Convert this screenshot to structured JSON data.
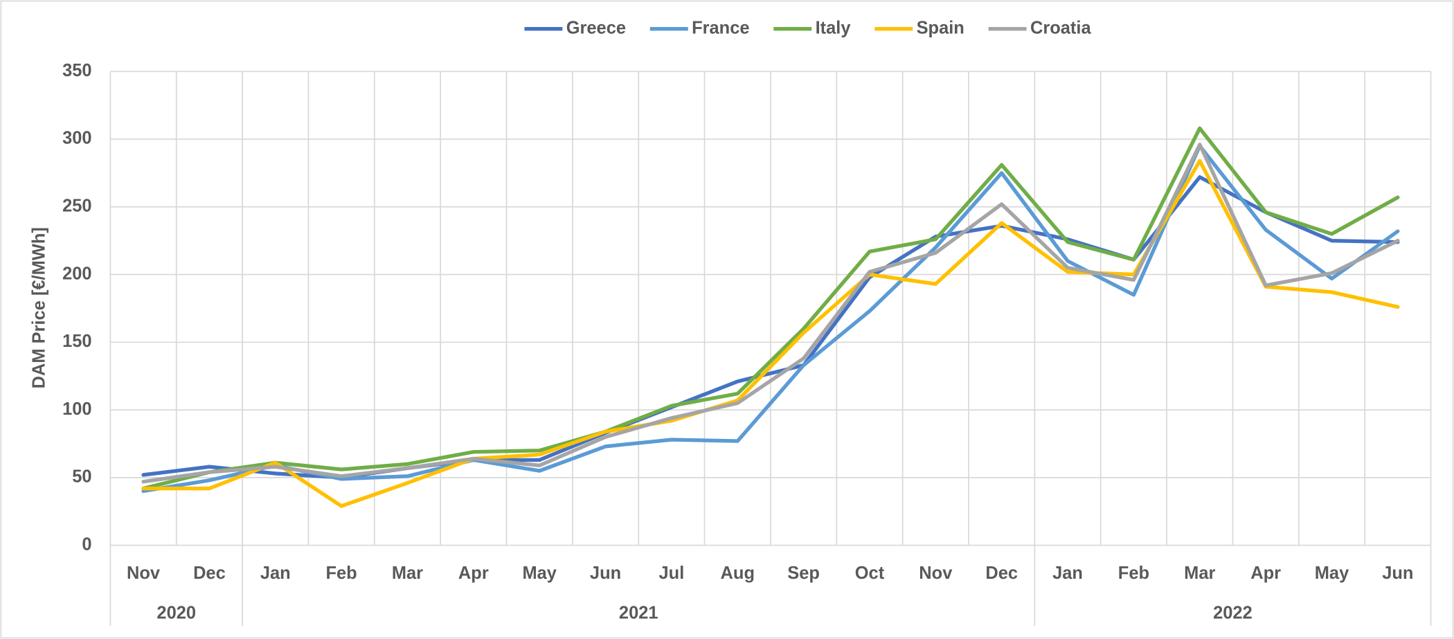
{
  "chart_data": {
    "type": "line",
    "y_label": "DAM Price [€/MWh]",
    "categories": [
      "Nov",
      "Dec",
      "Jan",
      "Feb",
      "Mar",
      "Apr",
      "May",
      "Jun",
      "Jul",
      "Aug",
      "Sep",
      "Oct",
      "Nov",
      "Dec",
      "Jan",
      "Feb",
      "Mar",
      "Apr",
      "May",
      "Jun"
    ],
    "year_groups": [
      {
        "label": "2020",
        "span": 2
      },
      {
        "label": "2021",
        "span": 12
      },
      {
        "label": "2022",
        "span": 6
      }
    ],
    "series": [
      {
        "name": "Greece",
        "color": "#4472c4",
        "values": [
          52,
          58,
          53,
          50,
          57,
          63,
          63,
          83,
          102,
          121,
          133,
          198,
          228,
          236,
          226,
          211,
          272,
          246,
          225,
          224
        ]
      },
      {
        "name": "France",
        "color": "#5b9bd5",
        "values": [
          40,
          48,
          59,
          49,
          51,
          63,
          55,
          73,
          78,
          77,
          133,
          173,
          220,
          275,
          210,
          185,
          295,
          233,
          197,
          232
        ]
      },
      {
        "name": "Italy",
        "color": "#70ad47",
        "values": [
          42,
          54,
          61,
          56,
          60,
          69,
          70,
          84,
          103,
          112,
          160,
          217,
          226,
          281,
          224,
          211,
          308,
          246,
          230,
          257
        ]
      },
      {
        "name": "Spain",
        "color": "#ffc000",
        "values": [
          42,
          42,
          61,
          29,
          46,
          64,
          67,
          84,
          92,
          107,
          157,
          200,
          193,
          238,
          202,
          200,
          284,
          191,
          187,
          176
        ]
      },
      {
        "name": "Croatia",
        "color": "#a5a5a5",
        "values": [
          47,
          54,
          58,
          51,
          57,
          64,
          59,
          80,
          94,
          105,
          138,
          202,
          216,
          252,
          205,
          196,
          296,
          192,
          201,
          225
        ]
      }
    ],
    "ylim": [
      0,
      350
    ],
    "yticks": [
      0,
      50,
      100,
      150,
      200,
      250,
      300,
      350
    ],
    "grid": true,
    "legend": "top"
  }
}
